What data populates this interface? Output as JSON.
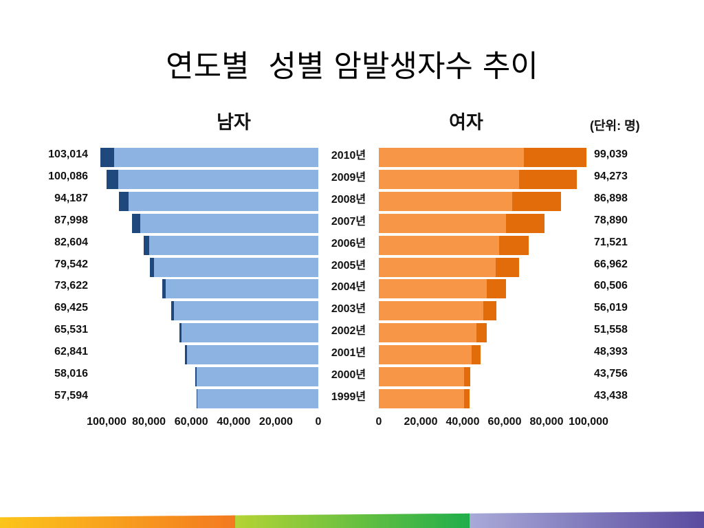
{
  "slide": {
    "title": "연도별  성별 암발생자수 추이",
    "unit_label": "(단위: 명)"
  },
  "chart_data": [
    {
      "type": "bar",
      "orientation": "horizontal",
      "stacked": true,
      "title": "남자",
      "categories": [
        "2010년",
        "2009년",
        "2008년",
        "2007년",
        "2006년",
        "2005년",
        "2004년",
        "2003년",
        "2002년",
        "2001년",
        "2000년",
        "1999년"
      ],
      "series": [
        {
          "values": [
            96414,
            94486,
            89587,
            84198,
            79904,
            77742,
            72222,
            68325,
            64731,
            62141,
            57416,
            57094
          ]
        },
        {
          "values": [
            6600,
            5600,
            4600,
            3800,
            2700,
            1800,
            1400,
            1100,
            800,
            700,
            600,
            500
          ]
        }
      ],
      "data_labels": [
        "103,014",
        "100,086",
        "94,187",
        "87,998",
        "82,604",
        "79,542",
        "73,622",
        "69,425",
        "65,531",
        "62,841",
        "58,016",
        "57,594"
      ],
      "xlim": [
        0,
        100000
      ],
      "x_reversed": true,
      "x_ticks": [
        100000,
        80000,
        60000,
        40000,
        20000,
        0
      ],
      "x_tick_labels": [
        "100,000",
        "80,000",
        "60,000",
        "40,000",
        "20,000",
        "0"
      ],
      "grid": false,
      "legend": "none",
      "colors": [
        "#8db3e2",
        "#1f497d"
      ]
    },
    {
      "type": "bar",
      "orientation": "horizontal",
      "stacked": true,
      "title": "여자",
      "categories": [
        "2010년",
        "2009년",
        "2008년",
        "2007년",
        "2006년",
        "2005년",
        "2004년",
        "2003년",
        "2002년",
        "2001년",
        "2000년",
        "1999년"
      ],
      "series": [
        {
          "values": [
            69039,
            66973,
            63698,
            60790,
            57521,
            55862,
            51606,
            49719,
            46658,
            44393,
            40756,
            40538
          ]
        },
        {
          "values": [
            30000,
            27300,
            23200,
            18100,
            14000,
            11100,
            8900,
            6300,
            4900,
            4000,
            3000,
            2900
          ]
        }
      ],
      "data_labels": [
        "99,039",
        "94,273",
        "86,898",
        "78,890",
        "71,521",
        "66,962",
        "60,506",
        "56,019",
        "51,558",
        "48,393",
        "43,756",
        "43,438"
      ],
      "xlim": [
        0,
        100000
      ],
      "x_reversed": false,
      "x_ticks": [
        0,
        20000,
        40000,
        60000,
        80000,
        100000
      ],
      "x_tick_labels": [
        "0",
        "20,000",
        "40,000",
        "60,000",
        "80,000",
        "100,000"
      ],
      "grid": false,
      "legend": "none",
      "colors": [
        "#f79646",
        "#e26b0a"
      ]
    }
  ],
  "footer": {
    "stripes": [
      {
        "from": "#fcc51b",
        "to": "#f37920"
      },
      {
        "from": "#b5d335",
        "to": "#20ae4b"
      },
      {
        "from": "#a9aad9",
        "to": "#5a4b9f"
      }
    ]
  }
}
